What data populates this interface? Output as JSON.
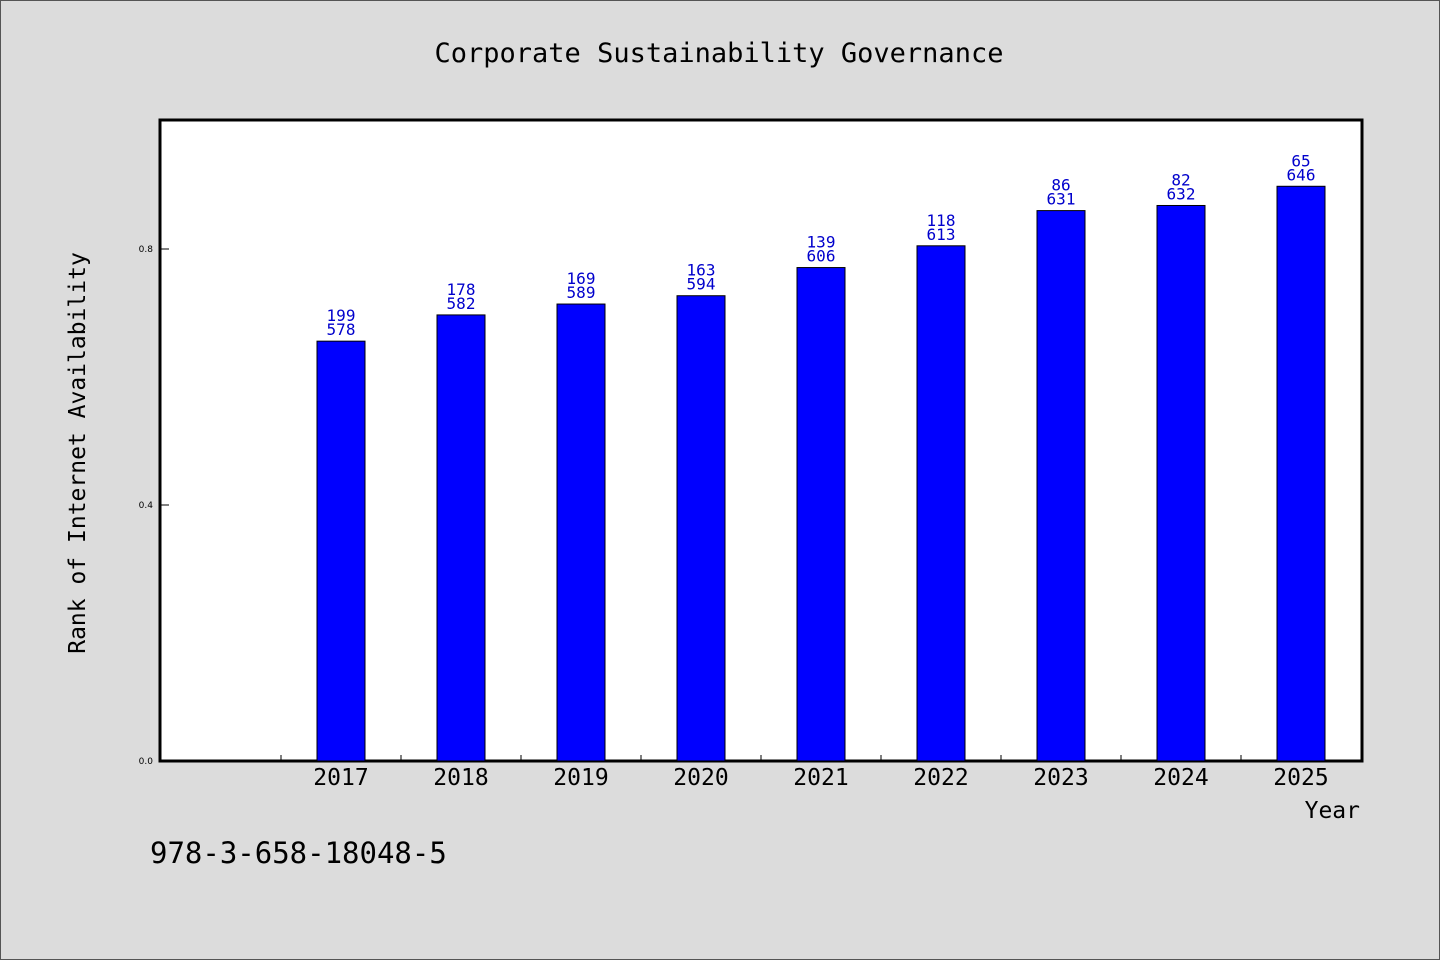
{
  "chart_data": {
    "type": "bar",
    "title": "Corporate Sustainability Governance",
    "xlabel": "Year",
    "ylabel": "Rank of Internet Availability",
    "categories": [
      "2017",
      "2018",
      "2019",
      "2020",
      "2021",
      "2022",
      "2023",
      "2024",
      "2025"
    ],
    "values": [
      0.656,
      0.697,
      0.714,
      0.727,
      0.771,
      0.805,
      0.86,
      0.868,
      0.898
    ],
    "label_top": [
      "199",
      "178",
      "169",
      "163",
      "139",
      "118",
      "86",
      "82",
      "65"
    ],
    "label_bottom": [
      "578",
      "582",
      "589",
      "594",
      "606",
      "613",
      "631",
      "632",
      "646"
    ],
    "yticks": [
      0.0,
      0.4,
      0.8
    ],
    "ytick_labels": [
      "0.0",
      "0.4",
      "0.8"
    ],
    "ylim": [
      0,
      1.0
    ],
    "grid": false,
    "bar_color": "#0000ff",
    "label_color": "#0000cc"
  },
  "footer": {
    "text": "978-3-658-18048-5"
  }
}
